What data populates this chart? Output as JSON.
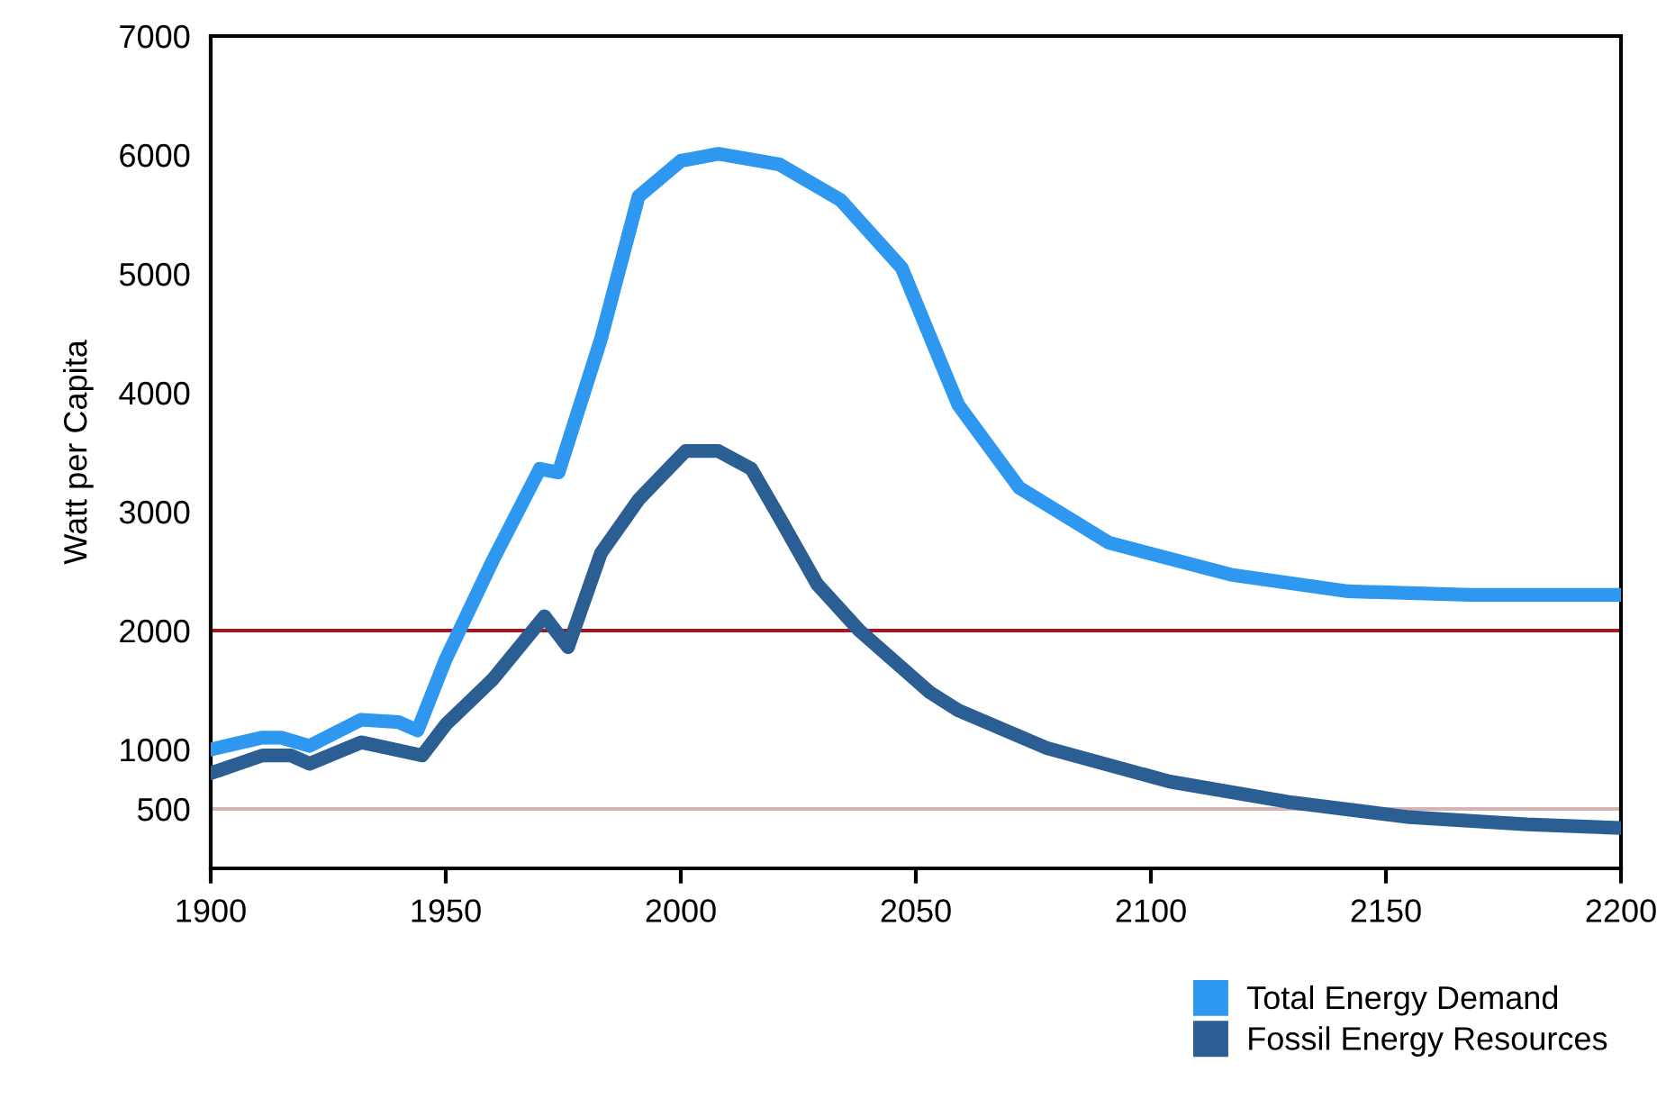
{
  "chart_data": {
    "type": "line",
    "ylabel": "Watt per Capita",
    "xlim": [
      1900,
      2200
    ],
    "xticks": [
      1900,
      1950,
      2000,
      2050,
      2100,
      2150,
      2200
    ],
    "ylim": [
      0,
      7000
    ],
    "yticks": [
      500,
      1000,
      2000,
      3000,
      4000,
      5000,
      6000,
      7000
    ],
    "grid": false,
    "legend": "bottom right",
    "marker": "none",
    "line_style": "solid",
    "series": [
      {
        "name": "Total Energy Demand",
        "color": "#2e97f0",
        "x": [
          1900,
          1911,
          1915,
          1921,
          1932,
          1940,
          1944,
          1950,
          1960,
          1970,
          1974,
          1983,
          1991,
          2000,
          2008,
          2021,
          2034,
          2047,
          2059,
          2072,
          2091,
          2117,
          2142,
          2168,
          2200
        ],
        "values": [
          1000,
          1100,
          1100,
          1030,
          1250,
          1230,
          1160,
          1760,
          2590,
          3360,
          3330,
          4450,
          5650,
          5950,
          6010,
          5920,
          5620,
          5050,
          3900,
          3200,
          2740,
          2470,
          2330,
          2300,
          2300
        ]
      },
      {
        "name": "Fossil Energy Resources",
        "color": "#2b5f94",
        "x": [
          1900,
          1911,
          1917,
          1921,
          1932,
          1945,
          1950,
          1960,
          1971,
          1976,
          1983,
          1991,
          2001,
          2008,
          2015,
          2021,
          2029,
          2038,
          2053,
          2059,
          2078,
          2104,
          2129,
          2155,
          2180,
          2200
        ],
        "values": [
          800,
          950,
          950,
          880,
          1060,
          950,
          1210,
          1590,
          2120,
          1860,
          2650,
          3100,
          3510,
          3510,
          3360,
          2950,
          2390,
          2000,
          1480,
          1330,
          1010,
          730,
          560,
          430,
          370,
          340
        ]
      }
    ],
    "ref_lines": [
      {
        "axis": "y",
        "value": 2000,
        "color": "#a01820"
      },
      {
        "axis": "y",
        "value": 500,
        "color": "#d2b4b4"
      }
    ]
  }
}
